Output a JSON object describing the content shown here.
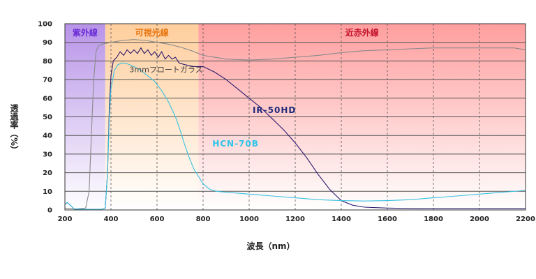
{
  "chart_data": {
    "type": "line",
    "xlabel": "波長（nm）",
    "ylabel": "透過率（%）",
    "xlim": [
      200,
      2200
    ],
    "ylim": [
      0,
      100
    ],
    "xticks": [
      200,
      400,
      600,
      800,
      1000,
      1200,
      1400,
      1600,
      1800,
      2000,
      2200
    ],
    "yticks": [
      0,
      10,
      20,
      30,
      40,
      50,
      60,
      70,
      80,
      90,
      100
    ],
    "grid": true,
    "bands": [
      {
        "label": "紫外線",
        "x0": 200,
        "x1": 375,
        "color": "#a070e0",
        "label_color": "#6a2bd6"
      },
      {
        "label": "可視光線",
        "x0": 375,
        "x1": 780,
        "color": "#ffa64d",
        "label_color": "#e8740c"
      },
      {
        "label": "近赤外線",
        "x0": 780,
        "x1": 2200,
        "color": "#ff6a6a",
        "label_color": "#c4122b"
      }
    ],
    "series": [
      {
        "name": "3mmフロートガラス",
        "color": "#8a8a8a",
        "label_at": [
          480,
          74
        ],
        "label_color": "#444444",
        "points": [
          [
            200,
            1
          ],
          [
            250,
            0.5
          ],
          [
            290,
            1
          ],
          [
            305,
            10
          ],
          [
            315,
            40
          ],
          [
            325,
            70
          ],
          [
            335,
            85
          ],
          [
            345,
            88
          ],
          [
            360,
            89
          ],
          [
            400,
            90
          ],
          [
            450,
            91
          ],
          [
            500,
            91.5
          ],
          [
            550,
            91
          ],
          [
            600,
            90
          ],
          [
            650,
            89
          ],
          [
            700,
            87.5
          ],
          [
            750,
            85.5
          ],
          [
            800,
            83
          ],
          [
            850,
            82
          ],
          [
            900,
            81
          ],
          [
            1000,
            80.5
          ],
          [
            1100,
            81
          ],
          [
            1200,
            82
          ],
          [
            1300,
            83
          ],
          [
            1400,
            84.5
          ],
          [
            1500,
            85.5
          ],
          [
            1600,
            86
          ],
          [
            1700,
            86.5
          ],
          [
            1800,
            87
          ],
          [
            1900,
            87
          ],
          [
            2000,
            87
          ],
          [
            2100,
            87
          ],
          [
            2150,
            87
          ],
          [
            2200,
            86
          ]
        ]
      },
      {
        "name": "IR-50HD",
        "color": "#2a1a6e",
        "label_at": [
          1015,
          52
        ],
        "label_color": "#1f2a7a",
        "points": [
          [
            200,
            3
          ],
          [
            210,
            4
          ],
          [
            220,
            3
          ],
          [
            240,
            0.5
          ],
          [
            300,
            0.3
          ],
          [
            360,
            0.3
          ],
          [
            375,
            1
          ],
          [
            385,
            20
          ],
          [
            393,
            55
          ],
          [
            400,
            72
          ],
          [
            410,
            80
          ],
          [
            425,
            82
          ],
          [
            440,
            85
          ],
          [
            455,
            83
          ],
          [
            470,
            86
          ],
          [
            485,
            84
          ],
          [
            500,
            86
          ],
          [
            515,
            84
          ],
          [
            530,
            87
          ],
          [
            545,
            84
          ],
          [
            560,
            86
          ],
          [
            575,
            83
          ],
          [
            590,
            85
          ],
          [
            605,
            82
          ],
          [
            620,
            85
          ],
          [
            635,
            81
          ],
          [
            650,
            83
          ],
          [
            665,
            81
          ],
          [
            680,
            82
          ],
          [
            695,
            79
          ],
          [
            720,
            78
          ],
          [
            760,
            77
          ],
          [
            800,
            77
          ],
          [
            850,
            74
          ],
          [
            900,
            70
          ],
          [
            950,
            65
          ],
          [
            1000,
            60
          ],
          [
            1050,
            55
          ],
          [
            1100,
            49
          ],
          [
            1150,
            43
          ],
          [
            1200,
            36
          ],
          [
            1250,
            28
          ],
          [
            1300,
            19
          ],
          [
            1350,
            11
          ],
          [
            1400,
            5
          ],
          [
            1450,
            2.5
          ],
          [
            1500,
            1.5
          ],
          [
            1600,
            1
          ],
          [
            1700,
            0.8
          ],
          [
            1800,
            0.7
          ],
          [
            1900,
            0.7
          ],
          [
            2000,
            0.7
          ],
          [
            2100,
            0.7
          ],
          [
            2200,
            0.7
          ]
        ]
      },
      {
        "name": "HCN-70B",
        "color": "#3ac2e0",
        "label_at": [
          840,
          34
        ],
        "label_color": "#2ec4ea",
        "points": [
          [
            200,
            3
          ],
          [
            210,
            4
          ],
          [
            220,
            3
          ],
          [
            240,
            0.5
          ],
          [
            300,
            0.3
          ],
          [
            360,
            0.3
          ],
          [
            375,
            1
          ],
          [
            385,
            20
          ],
          [
            393,
            50
          ],
          [
            400,
            65
          ],
          [
            415,
            75
          ],
          [
            430,
            78
          ],
          [
            450,
            79
          ],
          [
            470,
            78.5
          ],
          [
            500,
            77
          ],
          [
            530,
            75
          ],
          [
            560,
            72
          ],
          [
            590,
            69
          ],
          [
            620,
            64
          ],
          [
            650,
            58
          ],
          [
            680,
            50
          ],
          [
            700,
            43
          ],
          [
            720,
            35
          ],
          [
            740,
            28
          ],
          [
            760,
            22
          ],
          [
            780,
            18
          ],
          [
            800,
            14
          ],
          [
            830,
            11
          ],
          [
            860,
            10
          ],
          [
            900,
            9.5
          ],
          [
            1000,
            8.5
          ],
          [
            1100,
            7.5
          ],
          [
            1200,
            6.5
          ],
          [
            1300,
            5.5
          ],
          [
            1400,
            5
          ],
          [
            1500,
            4.8
          ],
          [
            1600,
            5
          ],
          [
            1700,
            5.5
          ],
          [
            1800,
            6.5
          ],
          [
            1900,
            7.5
          ],
          [
            2000,
            8.5
          ],
          [
            2100,
            9.5
          ],
          [
            2200,
            10.5
          ]
        ]
      }
    ]
  }
}
